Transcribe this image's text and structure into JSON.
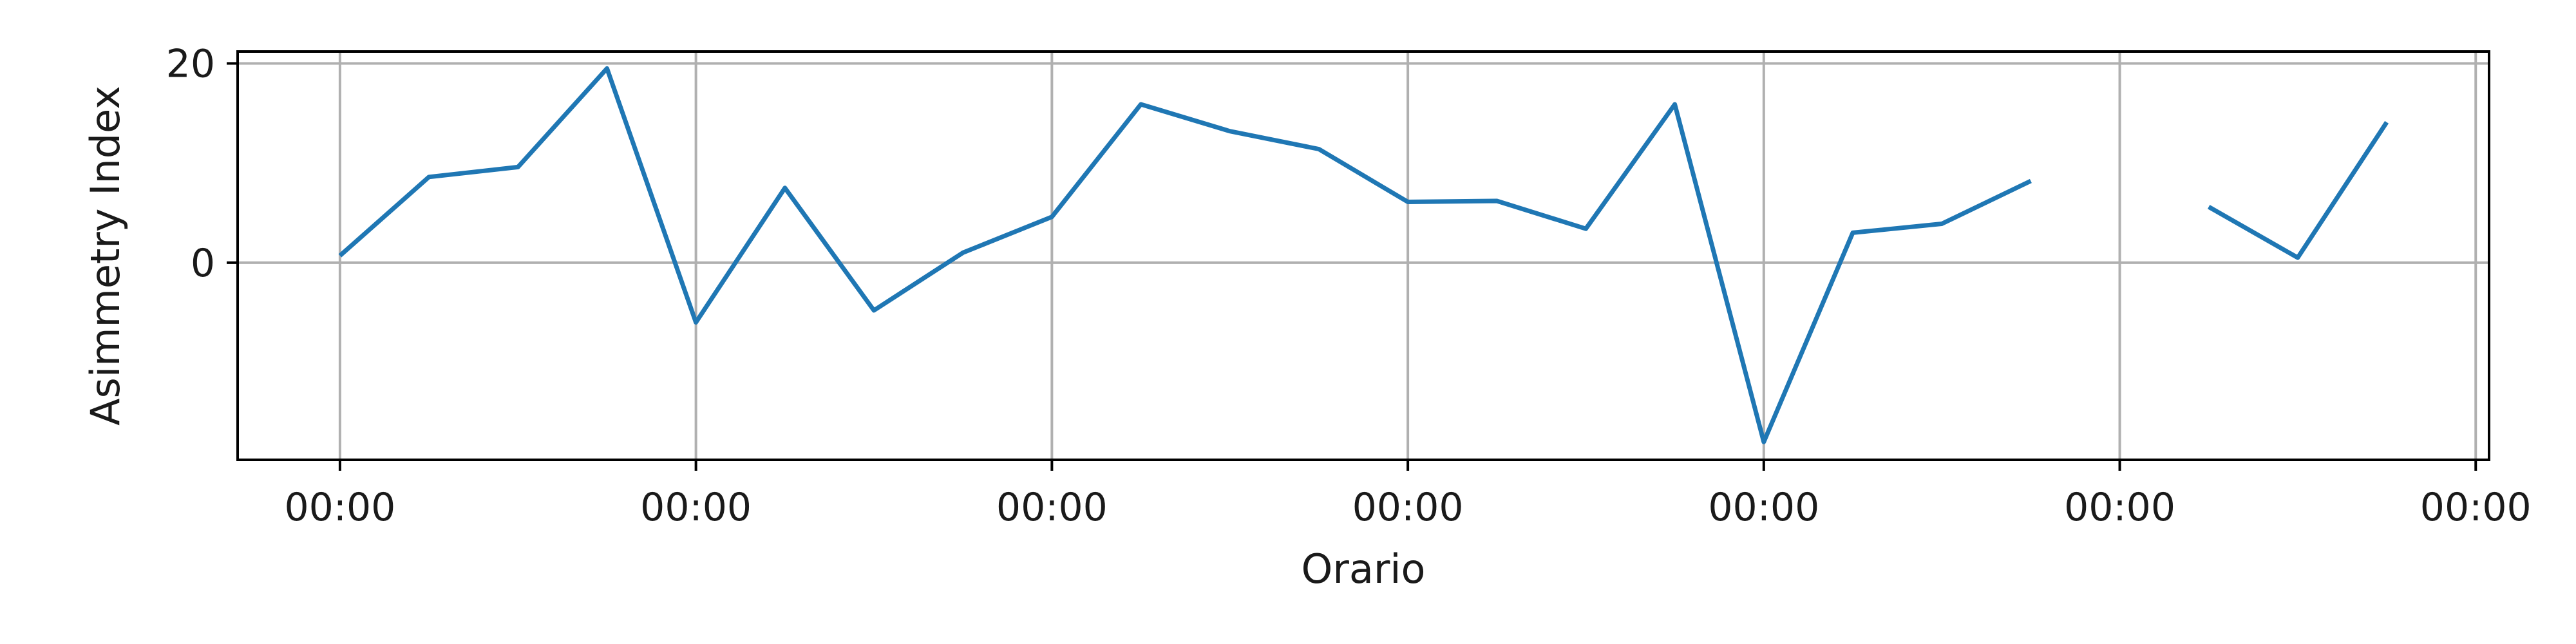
{
  "chart_data": {
    "type": "line",
    "xlabel": "Orario",
    "ylabel": "Asimmetry Index",
    "grid": true,
    "legend": "none",
    "colors": {
      "series": "#1f77b4"
    },
    "x_ticks": [
      {
        "pos": 0,
        "label": "00:00"
      },
      {
        "pos": 4,
        "label": "00:00"
      },
      {
        "pos": 8,
        "label": "00:00"
      },
      {
        "pos": 12,
        "label": "00:00"
      },
      {
        "pos": 16,
        "label": "00:00"
      },
      {
        "pos": 20,
        "label": "00:00"
      },
      {
        "pos": 24,
        "label": "00:00"
      }
    ],
    "y_ticks": [
      {
        "value": 0,
        "label": "0"
      },
      {
        "value": 20,
        "label": "20"
      }
    ],
    "xlim": [
      -1.15,
      24.15
    ],
    "ylim": [
      -19.8,
      21.2
    ],
    "series": [
      {
        "values": [
          [
            0,
            0.7
          ],
          [
            1,
            8.6
          ],
          [
            2,
            9.6
          ],
          [
            3,
            19.5
          ],
          [
            4,
            -6.0
          ],
          [
            5,
            7.5
          ],
          [
            6,
            -4.8
          ],
          [
            7,
            1.0
          ],
          [
            8,
            4.6
          ],
          [
            9,
            15.9
          ],
          [
            10,
            13.2
          ],
          [
            11,
            11.4
          ],
          [
            12,
            6.1
          ],
          [
            13,
            6.2
          ],
          [
            14,
            3.4
          ],
          [
            15,
            15.9
          ],
          [
            16,
            -18.0
          ],
          [
            17,
            3.0
          ],
          [
            18,
            3.9
          ],
          [
            19,
            8.2
          ],
          [
            20,
            null
          ],
          [
            21,
            5.6
          ],
          [
            22,
            0.5
          ],
          [
            23,
            14.1
          ]
        ]
      }
    ]
  }
}
